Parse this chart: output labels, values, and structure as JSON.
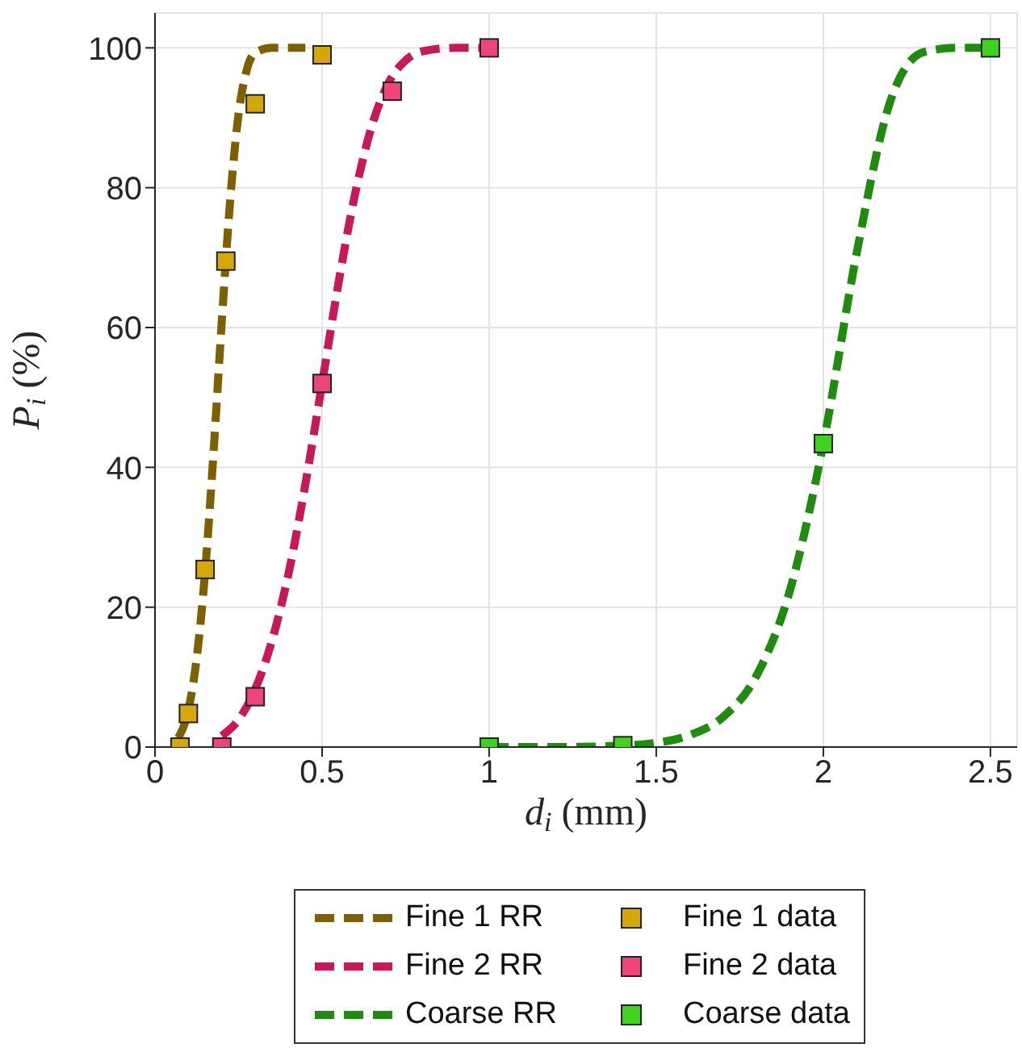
{
  "chart_data": {
    "type": "line",
    "xlabel": "d$_{i}$ (mm)",
    "ylabel": "P$_{i}$ (%)",
    "xlim": [
      0,
      2.58
    ],
    "xticks": [
      0,
      0.5,
      1,
      1.5,
      2,
      2.5
    ],
    "ylim": [
      0,
      105
    ],
    "yticks": [
      0,
      20,
      40,
      60,
      80,
      100
    ],
    "grid": true,
    "legend": "bottom",
    "series": [
      {
        "name": "Fine 1 RR",
        "type": "line",
        "line_style": "dashed",
        "marker": "none",
        "color": "#7f6000",
        "x": [
          0.07,
          0.1,
          0.125,
          0.15,
          0.175,
          0.2,
          0.225,
          0.25,
          0.275,
          0.3,
          0.35,
          0.4,
          0.45
        ],
        "values": [
          1.3,
          5.3,
          12.8,
          25.1,
          42,
          61,
          78.2,
          90.5,
          96.9,
          99.3,
          100,
          100,
          100
        ]
      },
      {
        "name": "Fine 2 RR",
        "type": "line",
        "line_style": "dashed",
        "marker": "none",
        "color": "#c8185a",
        "x": [
          0.2,
          0.25,
          0.3,
          0.35,
          0.4,
          0.45,
          0.5,
          0.55,
          0.6,
          0.65,
          0.7,
          0.75,
          0.8,
          0.9,
          1.0
        ],
        "values": [
          1.6,
          3.9,
          8.3,
          15.2,
          24.9,
          37.6,
          52,
          66.6,
          79.4,
          89,
          95.1,
          98.2,
          99.5,
          100,
          100
        ]
      },
      {
        "name": "Coarse RR",
        "type": "line",
        "line_style": "dashed",
        "marker": "none",
        "color": "#1e8c0c",
        "x": [
          1.0,
          1.2,
          1.4,
          1.5,
          1.6,
          1.7,
          1.8,
          1.9,
          2.0,
          2.1,
          2.2,
          2.3,
          2.4,
          2.5
        ],
        "values": [
          0,
          0,
          0.2,
          0.6,
          1.7,
          4.3,
          10.2,
          22.4,
          43.4,
          70.7,
          92.3,
          99.4,
          100,
          100
        ]
      },
      {
        "name": "Fine 1 data",
        "type": "scatter",
        "marker": "square",
        "color": "#d4a80a",
        "x": [
          0.075,
          0.1,
          0.15,
          0.212,
          0.3,
          0.5
        ],
        "values": [
          0,
          4.8,
          25.4,
          69.5,
          92,
          99
        ]
      },
      {
        "name": "Fine 2 data",
        "type": "scatter",
        "marker": "square",
        "color": "#f0457a",
        "x": [
          0.2,
          0.3,
          0.5,
          0.71,
          1.0
        ],
        "values": [
          0,
          7.2,
          52,
          93.8,
          100
        ]
      },
      {
        "name": "Coarse data",
        "type": "scatter",
        "marker": "square",
        "color": "#3fd21f",
        "x": [
          1.0,
          1.4,
          2.0,
          2.5
        ],
        "values": [
          0,
          0.2,
          43.4,
          100
        ]
      }
    ]
  }
}
